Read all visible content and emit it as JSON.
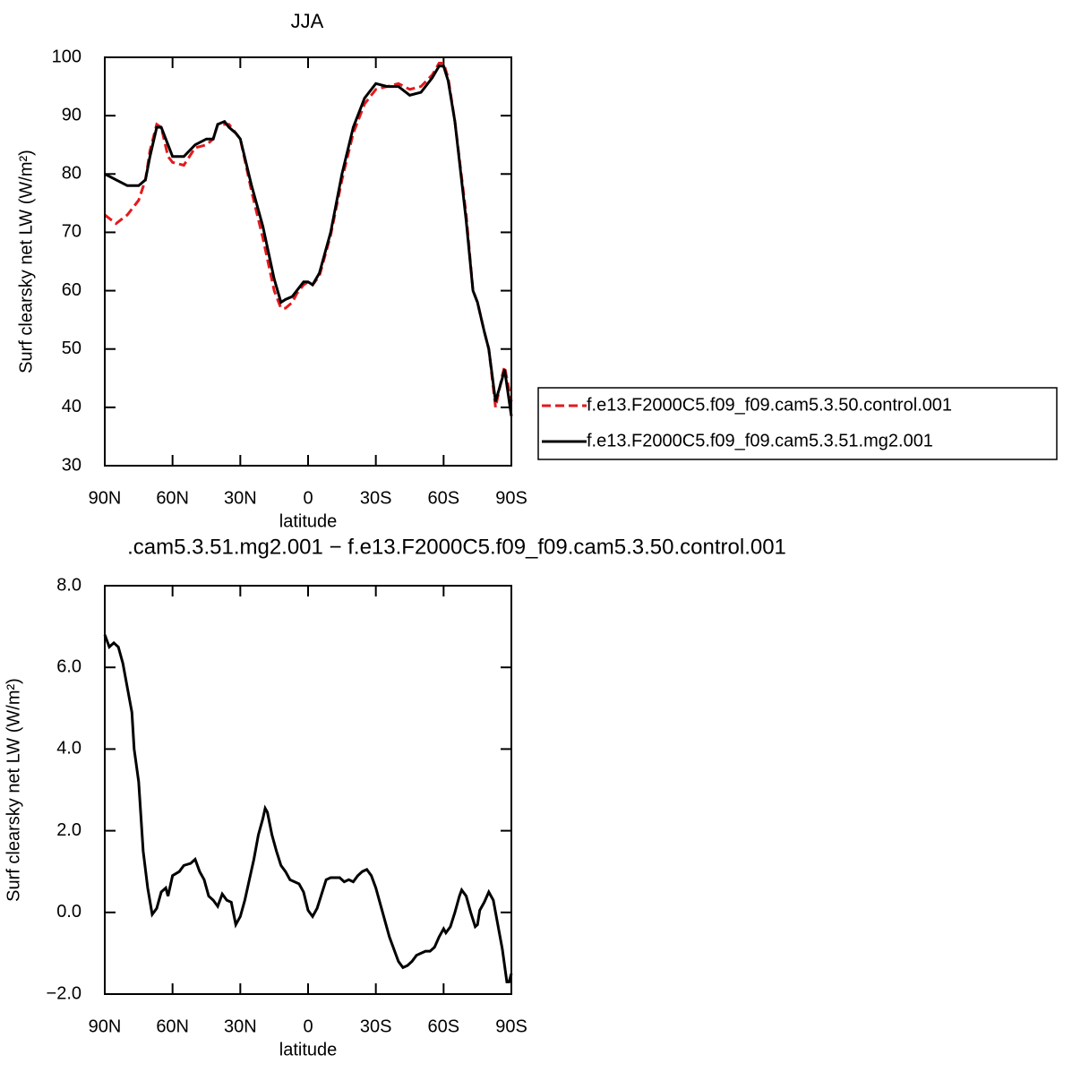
{
  "chart_data": [
    {
      "type": "line",
      "title": "JJA",
      "x_label": "latitude",
      "y_label": "Surf clearsky net LW (W/m²)",
      "x": [
        90,
        85,
        80,
        75,
        72,
        70,
        67,
        65,
        62,
        60,
        55,
        50,
        45,
        42,
        40,
        37,
        35,
        32,
        30,
        25,
        20,
        15,
        12,
        10,
        7,
        5,
        2,
        0,
        -2,
        -5,
        -10,
        -15,
        -20,
        -25,
        -30,
        -35,
        -40,
        -45,
        -50,
        -55,
        -58,
        -60,
        -62,
        -65,
        -70,
        -73,
        -75,
        -78,
        -80,
        -83,
        -86,
        -87,
        -90
      ],
      "series": [
        {
          "name": "f.e13.F2000C5.f09_f09.cam5.3.50.control.001",
          "color": "#e31a1c",
          "dash": "dashed",
          "values": [
            73,
            71.5,
            73,
            75.5,
            79,
            84,
            88.5,
            88,
            83,
            82,
            81.5,
            84.5,
            85,
            86,
            88.5,
            88.5,
            88.5,
            87,
            86,
            77,
            69,
            60,
            57,
            57,
            58,
            59.5,
            61,
            61.5,
            61,
            62.5,
            69.5,
            79,
            87,
            92,
            94.5,
            95,
            95.5,
            94.5,
            95,
            97,
            99,
            99,
            96.5,
            89,
            73,
            60,
            58,
            53,
            50,
            40,
            45.5,
            47,
            41
          ]
        },
        {
          "name": "f.e13.F2000C5.f09_f09.cam5.3.51.mg2.001",
          "color": "#000000",
          "dash": "solid",
          "values": [
            80,
            79,
            78,
            78,
            79,
            83,
            88,
            88,
            85,
            83,
            83,
            85,
            86,
            86,
            88.5,
            89,
            88,
            87,
            86,
            78,
            71,
            62,
            58,
            58.5,
            59,
            60,
            61.5,
            61.5,
            61,
            63,
            70,
            80,
            88,
            93,
            95.5,
            95,
            95,
            93.5,
            94,
            96.5,
            98.5,
            98.5,
            96,
            89,
            72,
            60,
            58,
            53,
            50,
            41,
            45,
            46.5,
            38.5
          ]
        }
      ],
      "xlim": [
        90,
        -90
      ],
      "xticks": [
        {
          "value": 90,
          "label": "90N"
        },
        {
          "value": 60,
          "label": "60N"
        },
        {
          "value": 30,
          "label": "30N"
        },
        0,
        {
          "value": -30,
          "label": "30S"
        },
        {
          "value": -60,
          "label": "60S"
        },
        {
          "value": -90,
          "label": "90S"
        }
      ],
      "ylim": [
        30,
        100
      ],
      "yticks": [
        30,
        40,
        50,
        60,
        70,
        80,
        90,
        100
      ],
      "legend": "right"
    },
    {
      "type": "line",
      "title": ".cam5.3.51.mg2.001 − f.e13.F2000C5.f09_f09.cam5.3.50.control.001",
      "x_label": "latitude",
      "y_label": "Surf clearsky net LW (W/m²)",
      "x": [
        90,
        88,
        86,
        84,
        82,
        80,
        78,
        77,
        75,
        73,
        71,
        69,
        67,
        65,
        63,
        62,
        60,
        57,
        55,
        52,
        50,
        48,
        46,
        44,
        42,
        40,
        38,
        36,
        34,
        32,
        30,
        28,
        26,
        24,
        22,
        20,
        19,
        18,
        16,
        14,
        12,
        10,
        8,
        6,
        4,
        2,
        0,
        -2,
        -4,
        -6,
        -8,
        -10,
        -12,
        -14,
        -16,
        -18,
        -20,
        -22,
        -24,
        -26,
        -28,
        -30,
        -32,
        -34,
        -36,
        -38,
        -40,
        -42,
        -44,
        -46,
        -48,
        -50,
        -52,
        -54,
        -56,
        -58,
        -60,
        -61,
        -63,
        -65,
        -67,
        -68,
        -70,
        -72,
        -74,
        -75,
        -76,
        -78,
        -80,
        -82,
        -84,
        -86,
        -88,
        -89,
        -90
      ],
      "series": [
        {
          "color": "#000000",
          "dash": "solid",
          "values": [
            6.8,
            6.5,
            6.6,
            6.5,
            6.1,
            5.5,
            4.9,
            4.0,
            3.2,
            1.5,
            0.6,
            -0.05,
            0.1,
            0.5,
            0.6,
            0.4,
            0.9,
            1.0,
            1.15,
            1.2,
            1.3,
            1.0,
            0.8,
            0.4,
            0.3,
            0.15,
            0.45,
            0.3,
            0.25,
            -0.3,
            -0.1,
            0.3,
            0.8,
            1.3,
            1.9,
            2.3,
            2.55,
            2.45,
            1.9,
            1.5,
            1.15,
            1.0,
            0.8,
            0.75,
            0.7,
            0.5,
            0.05,
            -0.1,
            0.1,
            0.45,
            0.8,
            0.85,
            0.85,
            0.85,
            0.75,
            0.8,
            0.75,
            0.9,
            1.0,
            1.05,
            0.9,
            0.6,
            0.2,
            -0.2,
            -0.6,
            -0.9,
            -1.2,
            -1.35,
            -1.3,
            -1.2,
            -1.05,
            -1.0,
            -0.95,
            -0.95,
            -0.85,
            -0.6,
            -0.4,
            -0.5,
            -0.35,
            0.0,
            0.4,
            0.55,
            0.4,
            0.0,
            -0.35,
            -0.3,
            0.05,
            0.25,
            0.5,
            0.3,
            -0.3,
            -0.9,
            -1.7,
            -1.7,
            -1.5
          ]
        }
      ],
      "xlim": [
        90,
        -90
      ],
      "xticks": [
        {
          "value": 90,
          "label": "90N"
        },
        {
          "value": 60,
          "label": "60N"
        },
        {
          "value": 30,
          "label": "30N"
        },
        0,
        {
          "value": -30,
          "label": "30S"
        },
        {
          "value": -60,
          "label": "60S"
        },
        {
          "value": -90,
          "label": "90S"
        }
      ],
      "ylim": [
        -2,
        8
      ],
      "yticks": [
        {
          "value": -2,
          "label": "−2.0"
        },
        {
          "value": 0,
          "label": "0.0"
        },
        {
          "value": 2,
          "label": "2.0"
        },
        {
          "value": 4,
          "label": "4.0"
        },
        {
          "value": 6,
          "label": "6.0"
        },
        {
          "value": 8,
          "label": "8.0"
        }
      ]
    }
  ]
}
